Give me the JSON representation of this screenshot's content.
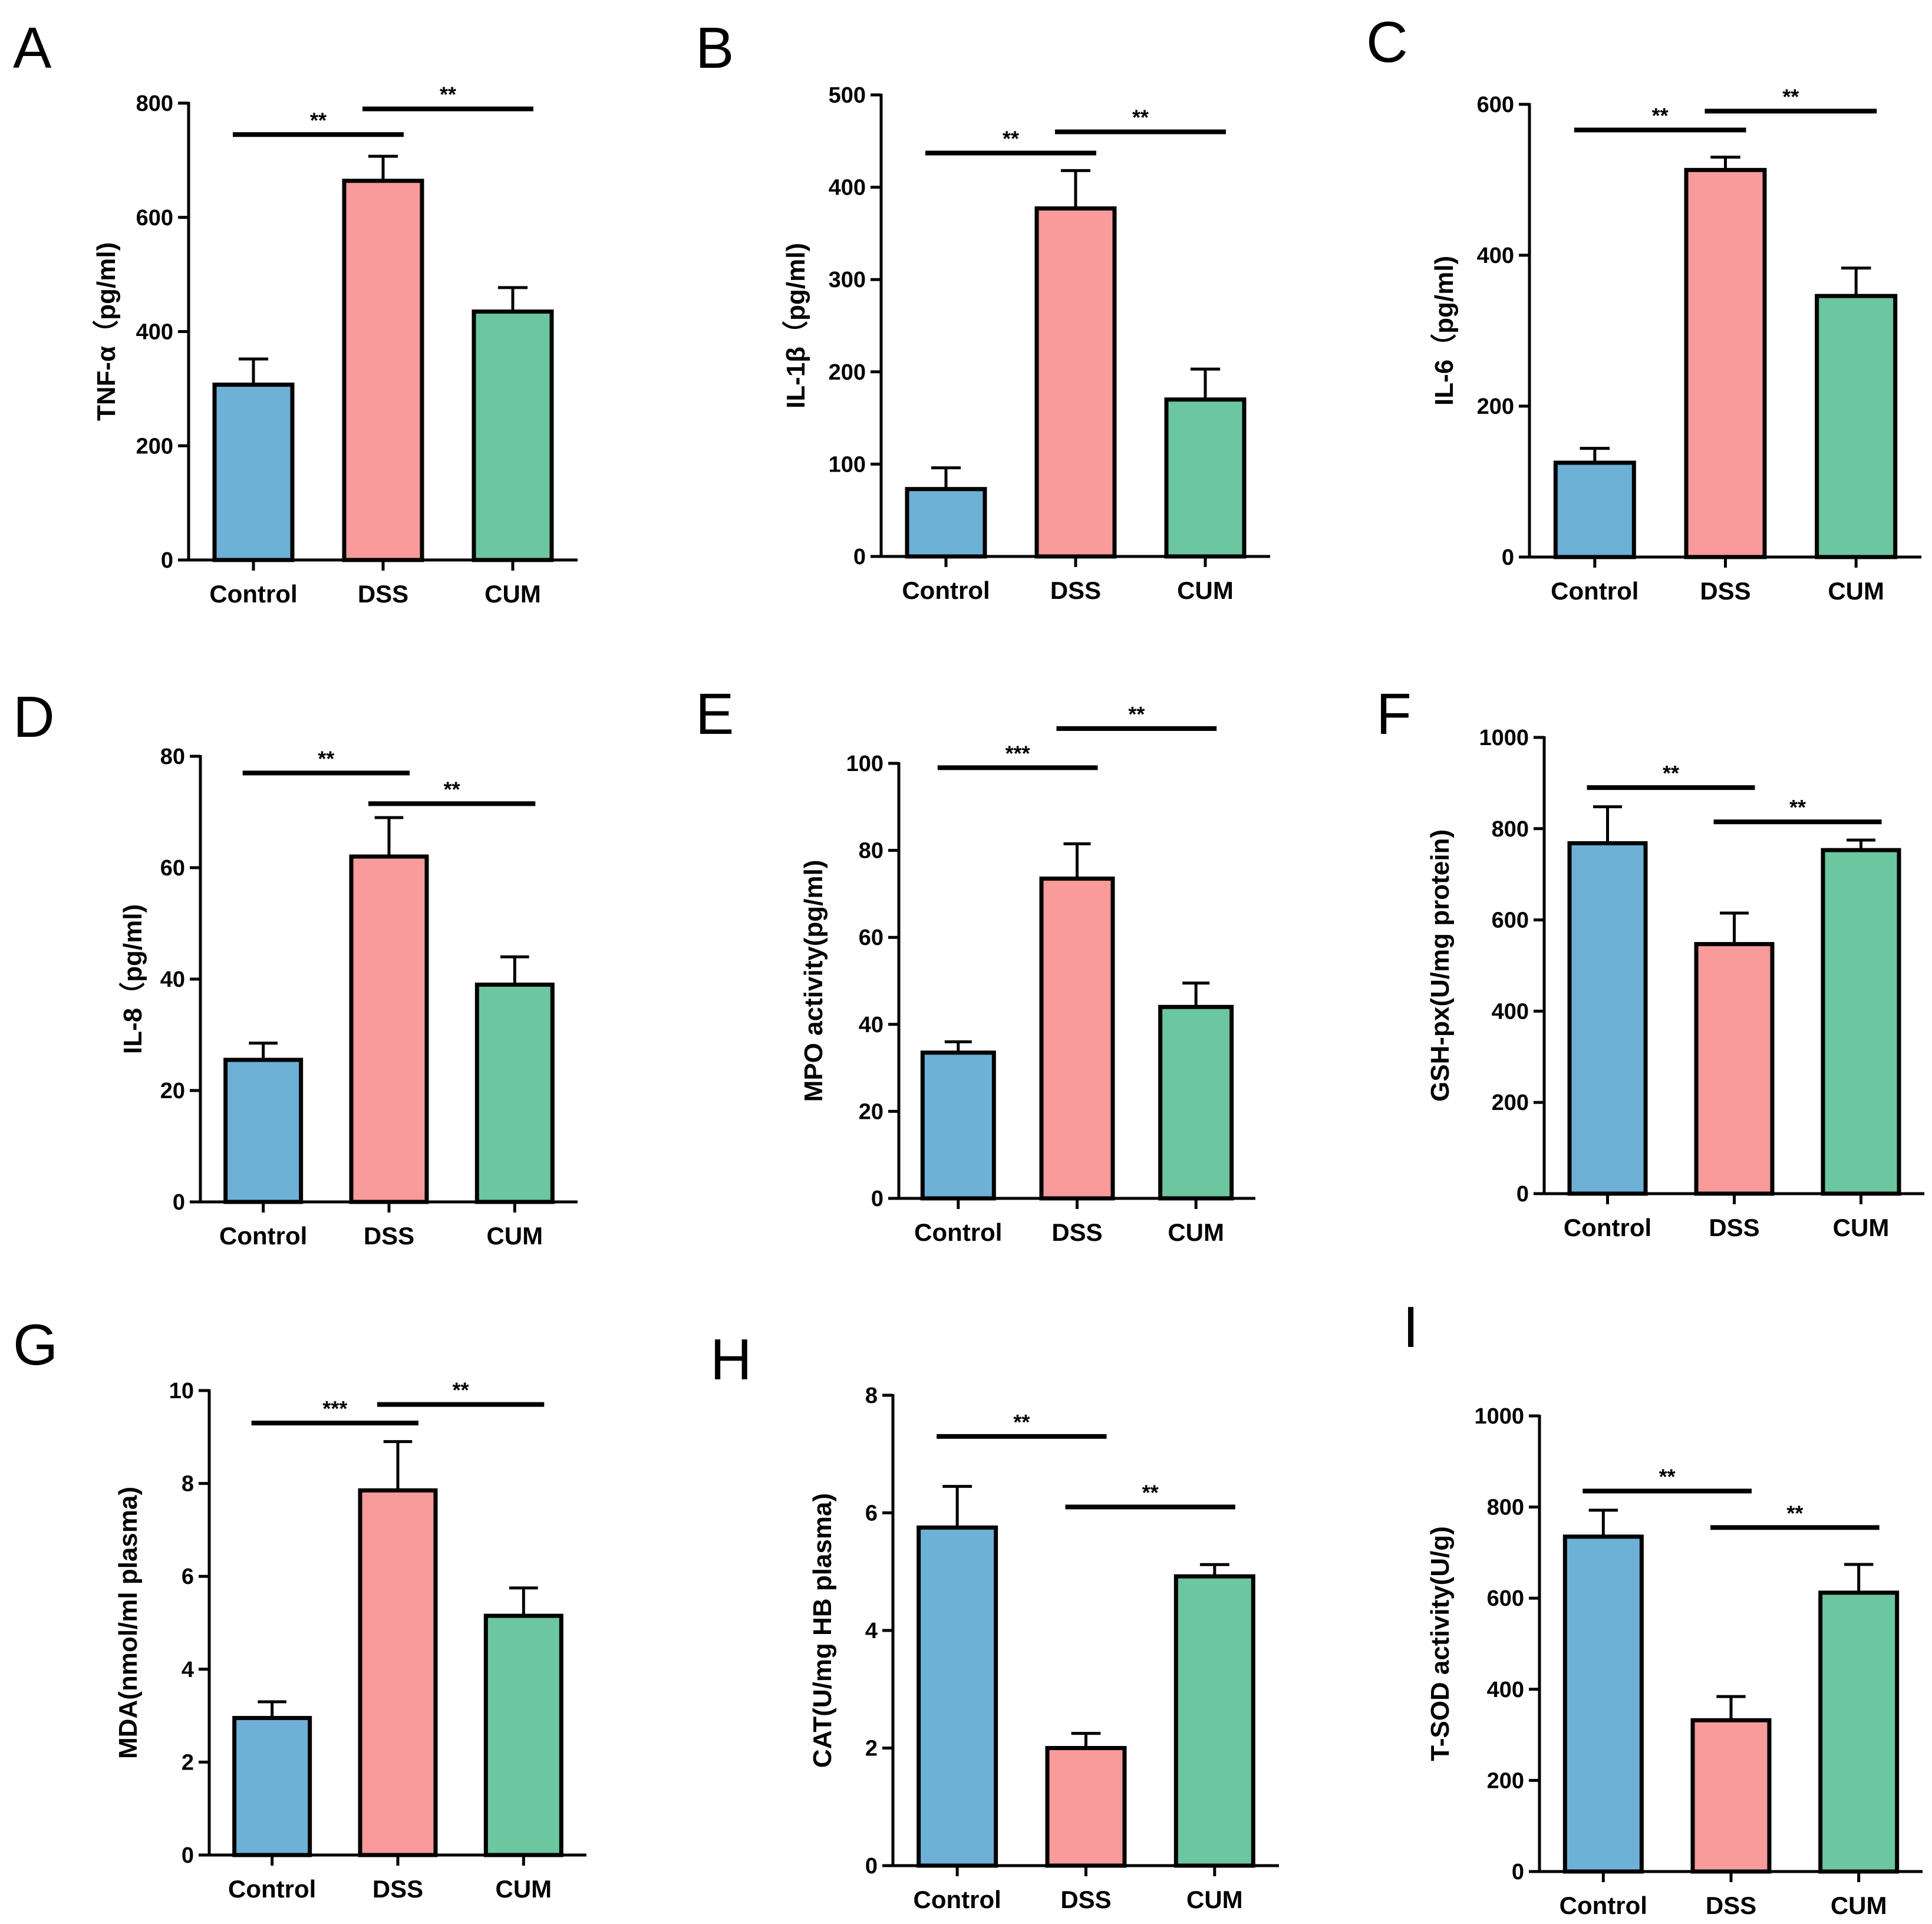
{
  "colors": {
    "control": "#6eb1d6",
    "dss": "#f99a9b",
    "cum": "#6cc6a0",
    "axis": "#000000"
  },
  "chart_data": [
    {
      "letter": "A",
      "type": "bar",
      "ylabel": "TNF-α（pg/ml)",
      "categories": [
        "Control",
        "DSS",
        "CUM"
      ],
      "values": [
        307,
        664,
        435
      ],
      "errors": [
        45,
        43,
        42
      ],
      "ylim": [
        0,
        800
      ],
      "yticks": [
        0,
        200,
        400,
        600,
        800
      ],
      "yticklabels": [
        "0",
        "200",
        "400",
        "600",
        "800"
      ],
      "sig": [
        {
          "from": 0,
          "to": 1,
          "y": 745,
          "label": "**"
        },
        {
          "from": 1,
          "to": 2,
          "y": 790,
          "label": "**"
        }
      ]
    },
    {
      "letter": "B",
      "type": "bar",
      "ylabel": "IL-1β（pg/ml)",
      "categories": [
        "Control",
        "DSS",
        "CUM"
      ],
      "values": [
        73,
        377,
        170
      ],
      "errors": [
        23,
        41,
        33
      ],
      "ylim": [
        0,
        500
      ],
      "yticks": [
        0,
        100,
        200,
        300,
        400,
        500
      ],
      "yticklabels": [
        "0",
        "100",
        "200",
        "300",
        "400",
        "500"
      ],
      "sig": [
        {
          "from": 0,
          "to": 1,
          "y": 437,
          "label": "**"
        },
        {
          "from": 1,
          "to": 2,
          "y": 460,
          "label": "**"
        }
      ]
    },
    {
      "letter": "C",
      "type": "bar",
      "ylabel": "IL-6（pg/ml)",
      "categories": [
        "Control",
        "DSS",
        "CUM"
      ],
      "values": [
        125,
        513,
        346
      ],
      "errors": [
        19,
        17,
        37
      ],
      "ylim": [
        0,
        600
      ],
      "yticks": [
        0,
        200,
        400,
        600
      ],
      "yticklabels": [
        "0",
        "200",
        "400",
        "600"
      ],
      "sig": [
        {
          "from": 0,
          "to": 1,
          "y": 566,
          "label": "**"
        },
        {
          "from": 1,
          "to": 2,
          "y": 591,
          "label": "**"
        }
      ]
    },
    {
      "letter": "D",
      "type": "bar",
      "ylabel": "IL-8（pg/ml)",
      "categories": [
        "Control",
        "DSS",
        "CUM"
      ],
      "values": [
        25.5,
        62,
        39
      ],
      "errors": [
        3,
        7,
        5
      ],
      "ylim": [
        0,
        80
      ],
      "yticks": [
        0,
        20,
        40,
        60,
        80
      ],
      "yticklabels": [
        "0",
        "20",
        "40",
        "60",
        "80"
      ],
      "sig": [
        {
          "from": 0,
          "to": 1,
          "y": 77,
          "label": "**"
        },
        {
          "from": 1,
          "to": 2,
          "y": 71.5,
          "label": "**"
        }
      ]
    },
    {
      "letter": "E",
      "type": "bar",
      "ylabel": "MPO activity(pg/ml)",
      "categories": [
        "Control",
        "DSS",
        "CUM"
      ],
      "values": [
        33.5,
        73.5,
        44
      ],
      "errors": [
        2.5,
        8,
        5.5
      ],
      "ylim": [
        0,
        100
      ],
      "yticks": [
        0,
        20,
        40,
        60,
        80,
        100
      ],
      "yticklabels": [
        "0",
        "20",
        "40",
        "60",
        "80",
        "100"
      ],
      "sig": [
        {
          "from": 0,
          "to": 1,
          "y": 99,
          "label": "***"
        },
        {
          "from": 1,
          "to": 2,
          "y": 108,
          "label": "**"
        }
      ]
    },
    {
      "letter": "F",
      "type": "bar",
      "ylabel": "GSH-px(U/mg protein)",
      "categories": [
        "Control",
        "DSS",
        "CUM"
      ],
      "values": [
        768,
        547,
        753
      ],
      "errors": [
        80,
        68,
        22
      ],
      "ylim": [
        0,
        1000
      ],
      "yticks": [
        0,
        200,
        400,
        600,
        800,
        1000
      ],
      "yticklabels": [
        "0",
        "200",
        "400",
        "600",
        "800",
        "1000"
      ],
      "sig": [
        {
          "from": 0,
          "to": 1,
          "y": 890,
          "label": "**"
        },
        {
          "from": 1,
          "to": 2,
          "y": 815,
          "label": "**"
        }
      ]
    },
    {
      "letter": "G",
      "type": "bar",
      "ylabel": "MDA(nmol/ml plasma)",
      "categories": [
        "Control",
        "DSS",
        "CUM"
      ],
      "values": [
        2.95,
        7.85,
        5.15
      ],
      "errors": [
        0.35,
        1.05,
        0.6
      ],
      "ylim": [
        0,
        10
      ],
      "yticks": [
        0,
        2,
        4,
        6,
        8,
        10
      ],
      "yticklabels": [
        "0",
        "2",
        "4",
        "6",
        "8",
        "10"
      ],
      "sig": [
        {
          "from": 0,
          "to": 1,
          "y": 9.3,
          "label": "***"
        },
        {
          "from": 1,
          "to": 2,
          "y": 9.7,
          "label": "**"
        }
      ]
    },
    {
      "letter": "H",
      "type": "bar",
      "ylabel": "CAT(U/mg HB plasma)",
      "categories": [
        "Control",
        "DSS",
        "CUM"
      ],
      "values": [
        5.75,
        2.0,
        4.92
      ],
      "errors": [
        0.7,
        0.25,
        0.2
      ],
      "ylim": [
        0,
        8
      ],
      "yticks": [
        0,
        2,
        4,
        6,
        8
      ],
      "yticklabels": [
        "0",
        "2",
        "4",
        "6",
        "8"
      ],
      "sig": [
        {
          "from": 0,
          "to": 1,
          "y": 7.3,
          "label": "**"
        },
        {
          "from": 1,
          "to": 2,
          "y": 6.1,
          "label": "**"
        }
      ]
    },
    {
      "letter": "I",
      "type": "bar",
      "ylabel": "T-SOD activity(U/g)",
      "categories": [
        "Control",
        "DSS",
        "CUM"
      ],
      "values": [
        735,
        332,
        612
      ],
      "errors": [
        58,
        52,
        62
      ],
      "ylim": [
        0,
        1000
      ],
      "yticks": [
        0,
        200,
        400,
        600,
        800,
        1000
      ],
      "yticklabels": [
        "0",
        "200",
        "400",
        "600",
        "800",
        "1000"
      ],
      "sig": [
        {
          "from": 0,
          "to": 1,
          "y": 835,
          "label": "**"
        },
        {
          "from": 1,
          "to": 2,
          "y": 755,
          "label": "**"
        }
      ]
    }
  ]
}
